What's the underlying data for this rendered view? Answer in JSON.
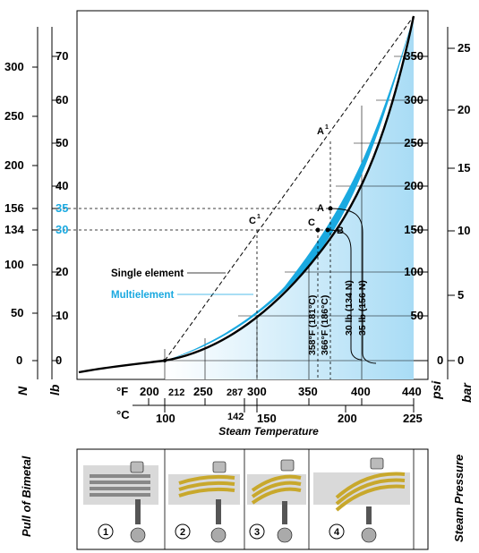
{
  "colors": {
    "multi": "#1aa9e0",
    "single": "#000000",
    "fill": "#bfe6f8",
    "metal": "#c8a82c"
  },
  "axes": {
    "N": {
      "label": "N",
      "ticks": [
        "300",
        "250",
        "200",
        "156",
        "134",
        "100",
        "50",
        "0"
      ]
    },
    "lb": {
      "label": "lb",
      "ticks": [
        "70",
        "60",
        "50",
        "40",
        "35",
        "30",
        "20",
        "10",
        "0"
      ]
    },
    "F": {
      "label": "°F",
      "ticks": [
        "200",
        "212",
        "250",
        "287",
        "300",
        "350",
        "400",
        "440"
      ]
    },
    "C": {
      "label": "°C",
      "ticks": [
        "100",
        "142",
        "150",
        "200",
        "225"
      ]
    },
    "psi": {
      "label": "psi",
      "ticks": [
        "350",
        "300",
        "250",
        "200",
        "150",
        "100",
        "50",
        "0"
      ]
    },
    "bar": {
      "label": "bar",
      "ticks": [
        "25",
        "20",
        "15",
        "10",
        "5",
        "0"
      ]
    }
  },
  "labels": {
    "pull": "Pull of Bimetal",
    "steam_temp": "Steam Temperature",
    "steam_pressure": "Steam Pressure",
    "single": "Single element",
    "multi": "Multielement",
    "pointA1": "A",
    "pointA1sup": "1",
    "pointA": "A",
    "pointC1": "C",
    "pointC1sup": "1",
    "pointC": "C",
    "pointB": "B",
    "t358": "358°F (181°C)",
    "t366": "366°F (186°C)",
    "f30": "30 lb (134 N)",
    "f35": "35 lb (156 N)"
  },
  "stages": [
    "1",
    "2",
    "3",
    "4"
  ],
  "chart_data": {
    "type": "line",
    "xlabel": "Steam Temperature",
    "ylabel": "Pull of Bimetal",
    "series": [
      {
        "name": "Single element",
        "x": [
          212,
          250,
          300,
          350,
          400,
          440
        ],
        "y": [
          0,
          4,
          12,
          28,
          56,
          80
        ]
      },
      {
        "name": "Multielement",
        "x": [
          212,
          250,
          300,
          350,
          400,
          440
        ],
        "y": [
          0,
          5,
          15,
          33,
          64,
          80
        ]
      }
    ]
  }
}
